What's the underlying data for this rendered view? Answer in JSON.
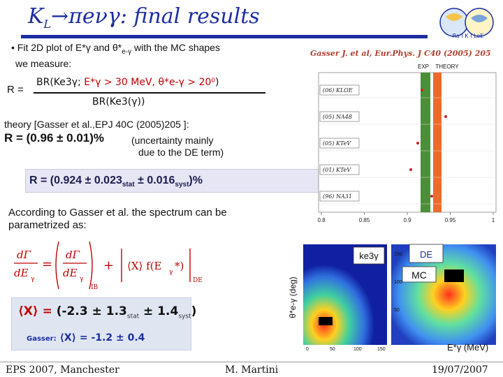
{
  "title": {
    "part1": "K",
    "part1_sub": "L",
    "part2": "→πeνγ: final results"
  },
  "logo_text": "Ra I K I LoE",
  "intro": {
    "line1_pre": "• Fit 2D plot of E*",
    "line1_gamma": "γ",
    "line1_mid": " and θ*",
    "line1_sub": "e-γ",
    "line1_post": " with the  MC shapes",
    "line2": "we measure:"
  },
  "ratio": {
    "lhs": "R =",
    "numerator_black": "BR(Ke3γ; ",
    "numerator_red": "E*γ > 30 MeV, θ*e-γ > 20⁰",
    "numerator_close": ")",
    "denominator": "BR(Ke3(γ))"
  },
  "theory": {
    "line": "theory [Gasser et al.,EPJ  40C (2005)205 ]:",
    "value": "R = (0.96 ± 0.01)%",
    "note_1": "(uncertainty mainly",
    "note_2": "due to the DE term)"
  },
  "result": {
    "pre": "R = (0.924 ± 0.023",
    "stat": "stat",
    "mid": " ± 0.016",
    "syst": "syst",
    "post": ")%"
  },
  "according": "According to Gasser et al. the spectrum can be parametrized as:",
  "formula": {
    "ib": "IB",
    "de": "DE",
    "sub_gamma": "γ",
    "plus": "+"
  },
  "x_measured": {
    "lhs": "⟨X⟩ = ",
    "value": "(-2.3 ± 1.3",
    "stat": "stat",
    "mid": " ± 1.4",
    "syst": "syst",
    "close": ")"
  },
  "x_gasser": {
    "label": "Gasser:",
    "value": "⟨X⟩ = -1.2 ± 0.4"
  },
  "comparison": {
    "reference": "Gasser J. et al, Eur.Phys. J C40 (2005) 205",
    "band_labels": [
      "EXP",
      "THEORY"
    ],
    "experiments": [
      "(06) KLOE",
      "(05) NA48",
      "(05) KTeV",
      "(01) KTeV",
      "(96) NA31"
    ],
    "x_ticks": [
      "0.8",
      "0.85",
      "0.9",
      "0.95",
      "1"
    ],
    "colors": {
      "exp_band": "#4c8f3a",
      "theory_band": "#ea6c2c",
      "points": "#cc2020"
    }
  },
  "hist2d": {
    "ylabel": "θ*e-γ (deg)",
    "xlabel": "E*γ (MeV)",
    "ke3_label": "ke3γ",
    "de_label": "DE",
    "mc_label": "MC",
    "y_ticks": [
      "150",
      "100",
      "50"
    ],
    "x_ticks": [
      "0",
      "50",
      "100",
      "150"
    ]
  },
  "footer": {
    "left": "EPS 2007, Manchester",
    "middle": "M. Martini",
    "right": "19/07/2007"
  }
}
